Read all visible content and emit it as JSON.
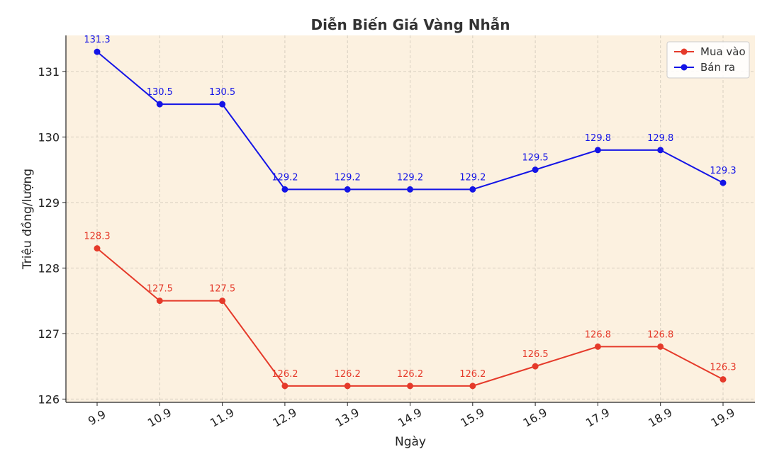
{
  "chart_data": {
    "type": "line",
    "title": "Diễn Biến Giá Vàng Nhẫn",
    "xlabel": "Ngày",
    "ylabel": "Triệu đồng/lượng",
    "categories": [
      "9.9",
      "10.9",
      "11.9",
      "12.9",
      "13.9",
      "14.9",
      "15.9",
      "16.9",
      "17.9",
      "18.9",
      "19.9"
    ],
    "ylim": [
      125.95,
      131.55
    ],
    "yticks": [
      126,
      127,
      128,
      129,
      130,
      131
    ],
    "grid": true,
    "legend_position": "top-right",
    "series": [
      {
        "name": "Mua vào",
        "color": "#e53a2a",
        "values": [
          128.3,
          127.5,
          127.5,
          126.2,
          126.2,
          126.2,
          126.2,
          126.5,
          126.8,
          126.8,
          126.3
        ]
      },
      {
        "name": "Bán ra",
        "color": "#1414e6",
        "values": [
          131.3,
          130.5,
          130.5,
          129.2,
          129.2,
          129.2,
          129.2,
          129.5,
          129.8,
          129.8,
          129.3
        ]
      }
    ]
  },
  "colors": {
    "plot_background": "#fcf1e0",
    "grid": "#d8cfc0"
  }
}
